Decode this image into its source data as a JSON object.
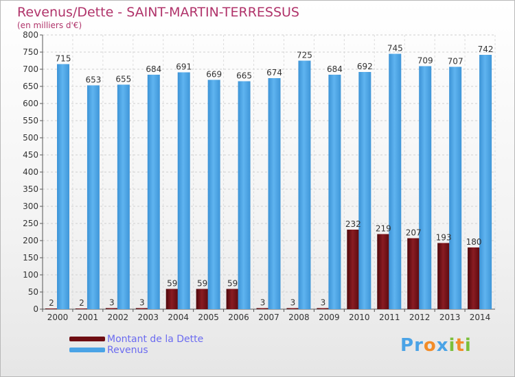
{
  "header": {
    "title": "Revenus/Dette - SAINT-MARTIN-TERRESSUS",
    "subtitle": "(en milliers d'€)"
  },
  "legend": {
    "items": [
      {
        "label": "Montant de la Dette",
        "color": "#6e0d12"
      },
      {
        "label": "Revenus",
        "color": "#4aa3e6"
      }
    ]
  },
  "logo": {
    "text": "Proxiti",
    "letters": [
      "P",
      "r",
      "o",
      "x",
      "i",
      "t",
      "i"
    ],
    "colors": [
      "#4aa3e6",
      "#4aa3e6",
      "#f28c28",
      "#4aa3e6",
      "#7bbf3a",
      "#f28c28",
      "#7bbf3a"
    ]
  },
  "chart_data": {
    "type": "bar",
    "title": "Revenus/Dette - SAINT-MARTIN-TERRESSUS",
    "subtitle": "(en milliers d'€)",
    "categories": [
      "2000",
      "2001",
      "2002",
      "2003",
      "2004",
      "2005",
      "2006",
      "2007",
      "2008",
      "2009",
      "2010",
      "2011",
      "2012",
      "2013",
      "2014"
    ],
    "series": [
      {
        "name": "Montant de la Dette",
        "color": "#6e0d12",
        "values": [
          2,
          2,
          3,
          3,
          59,
          59,
          59,
          3,
          3,
          3,
          232,
          219,
          207,
          193,
          180
        ]
      },
      {
        "name": "Revenus",
        "color": "#4aa3e6",
        "values": [
          715,
          653,
          655,
          684,
          691,
          669,
          665,
          674,
          725,
          684,
          692,
          745,
          709,
          707,
          742
        ]
      }
    ],
    "ylim": [
      0,
      800
    ],
    "yticks": [
      0,
      50,
      100,
      150,
      200,
      250,
      300,
      350,
      400,
      450,
      500,
      550,
      600,
      650,
      700,
      750,
      800
    ],
    "grid": true,
    "legend_position": "bottom-left"
  }
}
